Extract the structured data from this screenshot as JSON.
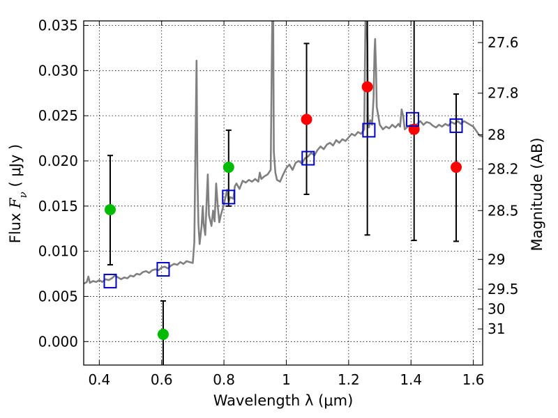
{
  "chart_data": {
    "type": "scatter",
    "title": "",
    "xlabel": "Wavelength  λ (μm)",
    "ylabel": "Flux  F_ν  ( μJy )",
    "ylabel_parts": {
      "prefix": "Flux  ",
      "symbol": "F",
      "subscript": "ν",
      "suffix": "  ( μJy )"
    },
    "y2label": "Magnitude (AB)",
    "xlim": [
      0.35,
      1.63
    ],
    "ylim": [
      -0.0026,
      0.0355
    ],
    "grid": true,
    "x_ticks": [
      0.4,
      0.6,
      0.8,
      1.0,
      1.2,
      1.4,
      1.6
    ],
    "x_tick_labels": [
      "0.4",
      "0.6",
      "0.8",
      "1",
      "1.2",
      "1.4",
      "1.6"
    ],
    "y_ticks": [
      0.0,
      0.005,
      0.01,
      0.015,
      0.02,
      0.025,
      0.03,
      0.035
    ],
    "y_tick_labels": [
      "0.000",
      "0.005",
      "0.010",
      "0.015",
      "0.020",
      "0.025",
      "0.030",
      "0.035"
    ],
    "y2_ticks": [
      {
        "label": "27.6",
        "flux": 0.0331
      },
      {
        "label": "27.8",
        "flux": 0.0275
      },
      {
        "label": "28",
        "flux": 0.0229
      },
      {
        "label": "28.2",
        "flux": 0.0191
      },
      {
        "label": "28.5",
        "flux": 0.0145
      },
      {
        "label": "29",
        "flux": 0.0091
      },
      {
        "label": "29.5",
        "flux": 0.0058
      },
      {
        "label": "30",
        "flux": 0.0036
      },
      {
        "label": "31",
        "flux": 0.0014
      }
    ],
    "series": [
      {
        "color": "#808080",
        "kind": "line",
        "points": [
          [
            0.35,
            0.0064
          ],
          [
            0.36,
            0.0066
          ],
          [
            0.365,
            0.0072
          ],
          [
            0.37,
            0.0065
          ],
          [
            0.38,
            0.0067
          ],
          [
            0.39,
            0.0066
          ],
          [
            0.4,
            0.0068
          ],
          [
            0.41,
            0.0066
          ],
          [
            0.42,
            0.0069
          ],
          [
            0.43,
            0.0068
          ],
          [
            0.44,
            0.007
          ],
          [
            0.45,
            0.0073
          ],
          [
            0.46,
            0.0071
          ],
          [
            0.47,
            0.0069
          ],
          [
            0.48,
            0.0071
          ],
          [
            0.49,
            0.007
          ],
          [
            0.5,
            0.0073
          ],
          [
            0.51,
            0.0072
          ],
          [
            0.52,
            0.0075
          ],
          [
            0.53,
            0.0074
          ],
          [
            0.54,
            0.0077
          ],
          [
            0.55,
            0.0078
          ],
          [
            0.56,
            0.0076
          ],
          [
            0.57,
            0.0079
          ],
          [
            0.58,
            0.008
          ],
          [
            0.59,
            0.0079
          ],
          [
            0.6,
            0.0082
          ],
          [
            0.61,
            0.0083
          ],
          [
            0.62,
            0.0081
          ],
          [
            0.63,
            0.0084
          ],
          [
            0.64,
            0.0086
          ],
          [
            0.65,
            0.0085
          ],
          [
            0.66,
            0.0088
          ],
          [
            0.67,
            0.0086
          ],
          [
            0.68,
            0.0089
          ],
          [
            0.69,
            0.0088
          ],
          [
            0.7,
            0.0087
          ],
          [
            0.705,
            0.011
          ],
          [
            0.708,
            0.02
          ],
          [
            0.712,
            0.0311
          ],
          [
            0.715,
            0.018
          ],
          [
            0.718,
            0.013
          ],
          [
            0.722,
            0.0108
          ],
          [
            0.728,
            0.0127
          ],
          [
            0.732,
            0.015
          ],
          [
            0.735,
            0.013
          ],
          [
            0.74,
            0.0118
          ],
          [
            0.745,
            0.016
          ],
          [
            0.748,
            0.0185
          ],
          [
            0.752,
            0.014
          ],
          [
            0.76,
            0.0128
          ],
          [
            0.765,
            0.0145
          ],
          [
            0.77,
            0.0133
          ],
          [
            0.775,
            0.0175
          ],
          [
            0.78,
            0.015
          ],
          [
            0.785,
            0.0132
          ],
          [
            0.79,
            0.014
          ],
          [
            0.8,
            0.0152
          ],
          [
            0.81,
            0.0168
          ],
          [
            0.815,
            0.0155
          ],
          [
            0.82,
            0.016
          ],
          [
            0.83,
            0.0158
          ],
          [
            0.835,
            0.0172
          ],
          [
            0.84,
            0.0175
          ],
          [
            0.85,
            0.0169
          ],
          [
            0.86,
            0.0178
          ],
          [
            0.87,
            0.0176
          ],
          [
            0.88,
            0.0179
          ],
          [
            0.89,
            0.0177
          ],
          [
            0.9,
            0.018
          ],
          [
            0.91,
            0.0177
          ],
          [
            0.915,
            0.0187
          ],
          [
            0.92,
            0.018
          ],
          [
            0.93,
            0.0183
          ],
          [
            0.94,
            0.0185
          ],
          [
            0.95,
            0.019
          ],
          [
            0.953,
            0.03
          ],
          [
            0.955,
            0.036
          ],
          [
            0.958,
            0.036
          ],
          [
            0.96,
            0.021
          ],
          [
            0.965,
            0.0187
          ],
          [
            0.97,
            0.0179
          ],
          [
            0.98,
            0.0177
          ],
          [
            0.99,
            0.0185
          ],
          [
            1.0,
            0.0192
          ],
          [
            1.01,
            0.0196
          ],
          [
            1.02,
            0.019
          ],
          [
            1.03,
            0.0198
          ],
          [
            1.04,
            0.02
          ],
          [
            1.05,
            0.0197
          ],
          [
            1.06,
            0.0203
          ],
          [
            1.07,
            0.0205
          ],
          [
            1.08,
            0.0209
          ],
          [
            1.09,
            0.0206
          ],
          [
            1.1,
            0.0212
          ],
          [
            1.11,
            0.0216
          ],
          [
            1.12,
            0.0213
          ],
          [
            1.13,
            0.0218
          ],
          [
            1.14,
            0.022
          ],
          [
            1.15,
            0.0217
          ],
          [
            1.16,
            0.0223
          ],
          [
            1.17,
            0.022
          ],
          [
            1.18,
            0.0224
          ],
          [
            1.19,
            0.0222
          ],
          [
            1.2,
            0.0226
          ],
          [
            1.21,
            0.023
          ],
          [
            1.22,
            0.0228
          ],
          [
            1.23,
            0.0232
          ],
          [
            1.24,
            0.023
          ],
          [
            1.25,
            0.0235
          ],
          [
            1.252,
            0.03
          ],
          [
            1.254,
            0.036
          ],
          [
            1.257,
            0.036
          ],
          [
            1.26,
            0.033
          ],
          [
            1.262,
            0.025
          ],
          [
            1.265,
            0.0237
          ],
          [
            1.27,
            0.0245
          ],
          [
            1.275,
            0.024
          ],
          [
            1.28,
            0.027
          ],
          [
            1.283,
            0.032
          ],
          [
            1.285,
            0.0335
          ],
          [
            1.288,
            0.03
          ],
          [
            1.29,
            0.026
          ],
          [
            1.3,
            0.024
          ],
          [
            1.31,
            0.0235
          ],
          [
            1.32,
            0.0238
          ],
          [
            1.33,
            0.0236
          ],
          [
            1.34,
            0.024
          ],
          [
            1.35,
            0.0237
          ],
          [
            1.36,
            0.0241
          ],
          [
            1.365,
            0.0238
          ],
          [
            1.37,
            0.0257
          ],
          [
            1.375,
            0.025
          ],
          [
            1.38,
            0.0235
          ],
          [
            1.39,
            0.0238
          ],
          [
            1.4,
            0.024
          ],
          [
            1.41,
            0.0238
          ],
          [
            1.42,
            0.0241
          ],
          [
            1.43,
            0.0244
          ],
          [
            1.44,
            0.024
          ],
          [
            1.45,
            0.0243
          ],
          [
            1.46,
            0.0242
          ],
          [
            1.47,
            0.0239
          ],
          [
            1.48,
            0.0237
          ],
          [
            1.49,
            0.024
          ],
          [
            1.5,
            0.0238
          ],
          [
            1.51,
            0.0241
          ],
          [
            1.52,
            0.0239
          ],
          [
            1.53,
            0.0243
          ],
          [
            1.54,
            0.0241
          ],
          [
            1.55,
            0.0244
          ],
          [
            1.56,
            0.0241
          ],
          [
            1.57,
            0.0244
          ],
          [
            1.58,
            0.0242
          ],
          [
            1.59,
            0.024
          ],
          [
            1.6,
            0.0238
          ],
          [
            1.61,
            0.0233
          ],
          [
            1.62,
            0.0228
          ],
          [
            1.63,
            0.0227
          ]
        ]
      },
      {
        "color": "#00bb00",
        "kind": "points",
        "points": [
          {
            "x": 0.435,
            "y": 0.0146,
            "lo": 0.0085,
            "hi": 0.0206
          },
          {
            "x": 0.605,
            "y": 0.0008,
            "lo": -0.003,
            "hi": 0.0045
          },
          {
            "x": 0.815,
            "y": 0.0193,
            "lo": 0.015,
            "hi": 0.0234
          }
        ]
      },
      {
        "color": "#ff0000",
        "kind": "points",
        "points": [
          {
            "x": 1.065,
            "y": 0.0246,
            "lo": 0.0163,
            "hi": 0.033
          },
          {
            "x": 1.26,
            "y": 0.0282,
            "lo": 0.0118,
            "hi": 0.036
          },
          {
            "x": 1.41,
            "y": 0.0235,
            "lo": 0.0112,
            "hi": 0.036
          },
          {
            "x": 1.545,
            "y": 0.0193,
            "lo": 0.0111,
            "hi": 0.0274
          }
        ]
      },
      {
        "color": "#0000cc",
        "kind": "open-squares",
        "points": [
          {
            "x": 0.435,
            "y": 0.0067
          },
          {
            "x": 0.605,
            "y": 0.008
          },
          {
            "x": 0.815,
            "y": 0.016
          },
          {
            "x": 1.07,
            "y": 0.0203
          },
          {
            "x": 1.265,
            "y": 0.0234
          },
          {
            "x": 1.405,
            "y": 0.0246
          },
          {
            "x": 1.545,
            "y": 0.0239
          }
        ]
      }
    ]
  }
}
